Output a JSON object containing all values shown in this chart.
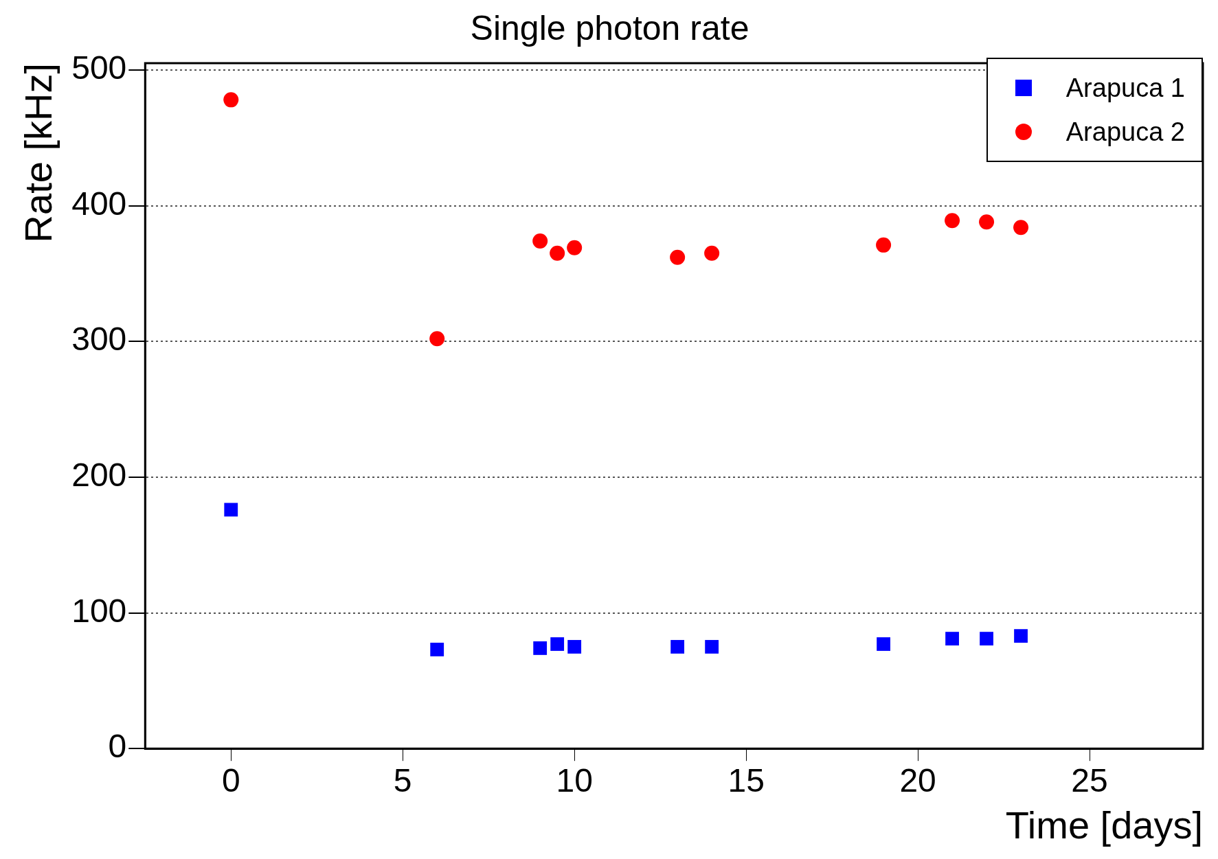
{
  "chart_data": {
    "type": "scatter",
    "title": "Single photon rate",
    "xlabel": "Time [days]",
    "ylabel": "Rate [kHz]",
    "xlim": [
      -2.5,
      28.3
    ],
    "xticks": [
      0,
      5,
      10,
      15,
      20,
      25
    ],
    "ylim": [
      0,
      505
    ],
    "yticks": [
      0,
      100,
      200,
      300,
      400,
      500
    ],
    "grid": "y",
    "legend": "top right",
    "series": [
      {
        "name": "Arapuca 1",
        "color": "#0000ff",
        "marker": "square",
        "x": [
          0,
          6,
          9,
          9.5,
          10,
          13,
          14,
          19,
          21,
          22,
          23
        ],
        "values": [
          176,
          73,
          74,
          77,
          75,
          75,
          75,
          77,
          81,
          81,
          83
        ]
      },
      {
        "name": "Arapuca 2",
        "color": "#ff0000",
        "marker": "circle",
        "x": [
          0,
          6,
          9,
          9.5,
          10,
          13,
          14,
          19,
          21,
          22,
          23
        ],
        "values": [
          478,
          302,
          374,
          365,
          369,
          362,
          365,
          371,
          389,
          388,
          384
        ]
      }
    ]
  }
}
